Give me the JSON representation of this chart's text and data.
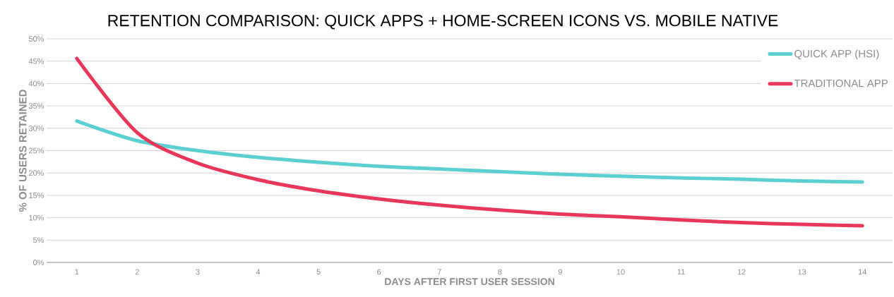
{
  "chart_data": {
    "type": "line",
    "title": "RETENTION COMPARISON: QUICK APPS + HOME-SCREEN ICONS VS. MOBILE NATIVE",
    "xlabel": "DAYS AFTER FIRST USER SESSION",
    "ylabel": "% OF USERS RETAINED",
    "categories": [
      "1",
      "2",
      "3",
      "4",
      "5",
      "6",
      "7",
      "8",
      "9",
      "10",
      "11",
      "12",
      "13",
      "14"
    ],
    "series": [
      {
        "name": "QUICK APP (HSI)",
        "color": "#5ccfd2",
        "values": [
          31.6,
          27.2,
          25,
          23.5,
          22.4,
          21.5,
          20.9,
          20.3,
          19.7,
          19.3,
          18.9,
          18.6,
          18.2,
          18.0
        ]
      },
      {
        "name": "TRADITIONAL APP",
        "color": "#e8375a",
        "values": [
          45.6,
          29,
          22.2,
          18.5,
          16,
          14.2,
          12.8,
          11.7,
          10.8,
          10.2,
          9.5,
          8.9,
          8.5,
          8.2
        ]
      }
    ],
    "ylim": [
      0,
      50
    ],
    "yticks": [
      {
        "value": 0,
        "label": "0%"
      },
      {
        "value": 5,
        "label": "5%"
      },
      {
        "value": 10,
        "label": "10%"
      },
      {
        "value": 15,
        "label": "15%"
      },
      {
        "value": 20,
        "label": "20%"
      },
      {
        "value": 25,
        "label": "25%"
      },
      {
        "value": 30,
        "label": "30%"
      },
      {
        "value": 35,
        "label": "35%"
      },
      {
        "value": 40,
        "label": "40%"
      },
      {
        "value": 45,
        "label": "45%"
      },
      {
        "value": 50,
        "label": "50%"
      }
    ],
    "grid": "y",
    "legend": "top right",
    "marker": "none",
    "line_style": "solid"
  }
}
